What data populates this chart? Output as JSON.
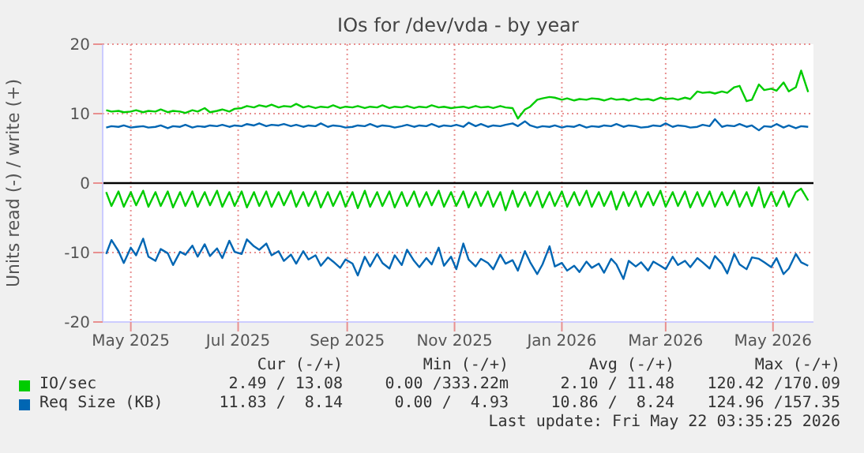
{
  "chart_data": {
    "type": "line",
    "title": "IOs for /dev/vda - by year",
    "ylabel": "Units read (-) / write (+)",
    "x": [
      "2025-04-17",
      "2025-04-20",
      "2025-04-24",
      "2025-04-27",
      "2025-05-01",
      "2025-05-04",
      "2025-05-08",
      "2025-05-11",
      "2025-05-15",
      "2025-05-18",
      "2025-05-22",
      "2025-05-25",
      "2025-05-29",
      "2025-06-01",
      "2025-06-05",
      "2025-06-08",
      "2025-06-12",
      "2025-06-15",
      "2025-06-19",
      "2025-06-22",
      "2025-06-26",
      "2025-06-29",
      "2025-07-03",
      "2025-07-06",
      "2025-07-10",
      "2025-07-13",
      "2025-07-17",
      "2025-07-20",
      "2025-07-24",
      "2025-07-27",
      "2025-07-31",
      "2025-08-03",
      "2025-08-07",
      "2025-08-10",
      "2025-08-14",
      "2025-08-17",
      "2025-08-21",
      "2025-08-24",
      "2025-08-28",
      "2025-08-31",
      "2025-09-04",
      "2025-09-07",
      "2025-09-11",
      "2025-09-14",
      "2025-09-18",
      "2025-09-21",
      "2025-09-25",
      "2025-09-28",
      "2025-10-02",
      "2025-10-05",
      "2025-10-09",
      "2025-10-12",
      "2025-10-16",
      "2025-10-19",
      "2025-10-23",
      "2025-10-26",
      "2025-10-30",
      "2025-11-02",
      "2025-11-06",
      "2025-11-09",
      "2025-11-13",
      "2025-11-16",
      "2025-11-20",
      "2025-11-23",
      "2025-11-27",
      "2025-11-30",
      "2025-12-04",
      "2025-12-07",
      "2025-12-11",
      "2025-12-14",
      "2025-12-18",
      "2025-12-21",
      "2025-12-25",
      "2025-12-28",
      "2026-01-01",
      "2026-01-04",
      "2026-01-08",
      "2026-01-11",
      "2026-01-15",
      "2026-01-18",
      "2026-01-22",
      "2026-01-25",
      "2026-01-29",
      "2026-02-01",
      "2026-02-05",
      "2026-02-08",
      "2026-02-12",
      "2026-02-15",
      "2026-02-19",
      "2026-02-22",
      "2026-02-26",
      "2026-03-01",
      "2026-03-05",
      "2026-03-08",
      "2026-03-12",
      "2026-03-15",
      "2026-03-19",
      "2026-03-22",
      "2026-03-26",
      "2026-03-29",
      "2026-04-02",
      "2026-04-05",
      "2026-04-09",
      "2026-04-12",
      "2026-04-16",
      "2026-04-19",
      "2026-04-23",
      "2026-04-26",
      "2026-04-30",
      "2026-05-03",
      "2026-05-07",
      "2026-05-10",
      "2026-05-14",
      "2026-05-17",
      "2026-05-21"
    ],
    "series": [
      {
        "name": "IO/sec",
        "color": "#00cc00",
        "values": [
          10.5,
          10.3,
          10.4,
          10.2,
          10.3,
          10.5,
          10.2,
          10.4,
          10.3,
          10.6,
          10.2,
          10.4,
          10.3,
          10.1,
          10.5,
          10.3,
          10.8,
          10.2,
          10.4,
          10.6,
          10.3,
          10.7,
          10.8,
          11.1,
          10.9,
          11.2,
          11.0,
          11.3,
          10.9,
          11.1,
          11.0,
          11.4,
          10.9,
          11.1,
          10.8,
          11.0,
          10.9,
          11.2,
          10.8,
          11.0,
          10.9,
          11.1,
          10.8,
          11.0,
          10.9,
          11.2,
          10.8,
          11.0,
          10.9,
          11.1,
          10.8,
          11.0,
          10.9,
          11.2,
          10.9,
          11.0,
          10.8,
          10.9,
          11.0,
          10.8,
          11.1,
          10.9,
          11.0,
          10.8,
          11.1,
          10.9,
          10.8,
          9.3,
          10.6,
          11.0,
          12.0,
          12.2,
          12.4,
          12.3,
          12.0,
          12.2,
          11.9,
          12.1,
          12.0,
          12.2,
          12.1,
          11.9,
          12.2,
          12.0,
          12.1,
          11.9,
          12.2,
          12.0,
          12.1,
          11.9,
          12.3,
          12.1,
          12.2,
          12.0,
          12.3,
          12.1,
          13.2,
          13.0,
          13.1,
          12.9,
          13.2,
          13.0,
          13.8,
          14.0,
          11.8,
          12.0,
          14.2,
          13.4,
          13.6,
          13.3,
          14.5,
          13.2,
          13.8,
          16.2,
          13.1
        ]
      },
      {
        "color": "#00cc00",
        "values": [
          -1.3,
          -3.3,
          -1.2,
          -3.4,
          -1.3,
          -3.2,
          -1.1,
          -3.4,
          -1.3,
          -3.3,
          -1.2,
          -3.5,
          -1.3,
          -3.3,
          -1.2,
          -3.4,
          -1.3,
          -3.2,
          -1.1,
          -3.4,
          -1.3,
          -3.3,
          -1.2,
          -3.5,
          -1.3,
          -3.3,
          -1.2,
          -3.4,
          -1.3,
          -3.2,
          -1.1,
          -3.4,
          -1.3,
          -3.3,
          -1.2,
          -3.5,
          -1.3,
          -3.3,
          -1.2,
          -3.4,
          -1.3,
          -3.6,
          -1.1,
          -3.4,
          -1.3,
          -3.3,
          -1.2,
          -3.5,
          -1.3,
          -3.3,
          -1.2,
          -3.4,
          -1.3,
          -3.2,
          -1.1,
          -3.4,
          -1.3,
          -3.3,
          -1.2,
          -3.5,
          -1.3,
          -3.3,
          -1.2,
          -3.4,
          -1.3,
          -3.9,
          -1.1,
          -3.4,
          -1.3,
          -3.3,
          -1.2,
          -3.5,
          -1.3,
          -3.3,
          -1.2,
          -3.4,
          -1.3,
          -3.2,
          -1.1,
          -3.4,
          -1.3,
          -3.3,
          -1.2,
          -3.8,
          -1.3,
          -3.3,
          -1.2,
          -3.4,
          -1.3,
          -3.2,
          -1.1,
          -3.4,
          -1.3,
          -3.3,
          -1.2,
          -3.5,
          -1.3,
          -3.3,
          -1.2,
          -3.4,
          -1.3,
          -3.2,
          -1.1,
          -3.4,
          -1.3,
          -3.3,
          -0.6,
          -3.5,
          -1.3,
          -3.3,
          -1.2,
          -3.4,
          -1.3,
          -0.8,
          -2.5
        ]
      },
      {
        "name": "Req Size (KB)",
        "color": "#0066b3",
        "values": [
          8.0,
          8.2,
          8.1,
          8.3,
          8.0,
          8.1,
          8.2,
          8.0,
          8.1,
          8.3,
          7.9,
          8.2,
          8.1,
          8.4,
          8.0,
          8.2,
          8.1,
          8.3,
          8.2,
          8.4,
          8.1,
          8.3,
          8.2,
          8.5,
          8.3,
          8.6,
          8.2,
          8.4,
          8.3,
          8.5,
          8.2,
          8.4,
          8.1,
          8.3,
          8.2,
          8.6,
          8.1,
          8.3,
          8.2,
          8.0,
          8.1,
          8.3,
          8.2,
          8.5,
          8.1,
          8.3,
          8.2,
          8.0,
          8.2,
          8.4,
          8.1,
          8.3,
          8.2,
          8.5,
          8.1,
          8.3,
          8.2,
          8.4,
          8.1,
          8.7,
          8.2,
          8.5,
          8.1,
          8.3,
          8.2,
          8.4,
          8.6,
          8.2,
          8.9,
          8.3,
          8.0,
          8.2,
          8.1,
          8.3,
          8.0,
          8.2,
          8.1,
          8.4,
          8.0,
          8.2,
          8.1,
          8.3,
          8.2,
          8.5,
          8.1,
          8.3,
          8.2,
          8.0,
          8.1,
          8.3,
          8.2,
          8.6,
          8.1,
          8.3,
          8.2,
          8.0,
          8.1,
          8.4,
          8.2,
          9.2,
          8.1,
          8.3,
          8.2,
          8.5,
          8.1,
          8.3,
          7.6,
          8.2,
          8.1,
          8.5,
          8.0,
          8.3,
          7.9,
          8.2,
          8.1
        ]
      },
      {
        "color": "#0066b3",
        "values": [
          -10.2,
          -8.2,
          -9.8,
          -11.5,
          -9.3,
          -10.4,
          -8.0,
          -10.6,
          -11.2,
          -9.5,
          -10.1,
          -11.8,
          -9.9,
          -10.3,
          -9.0,
          -10.6,
          -8.8,
          -10.5,
          -9.4,
          -10.8,
          -8.3,
          -9.9,
          -10.2,
          -8.1,
          -9.1,
          -9.6,
          -8.7,
          -10.4,
          -9.8,
          -11.2,
          -10.3,
          -11.6,
          -9.8,
          -11.0,
          -10.4,
          -11.9,
          -10.7,
          -11.3,
          -12.2,
          -11.0,
          -11.6,
          -13.3,
          -10.6,
          -12.0,
          -10.2,
          -11.5,
          -12.3,
          -10.4,
          -11.8,
          -9.6,
          -11.2,
          -12.1,
          -10.8,
          -11.7,
          -9.3,
          -11.9,
          -10.6,
          -12.4,
          -8.7,
          -11.0,
          -12.0,
          -10.9,
          -11.5,
          -12.4,
          -10.3,
          -11.6,
          -11.1,
          -12.6,
          -9.8,
          -11.4,
          -13.1,
          -11.7,
          -9.1,
          -12.0,
          -11.5,
          -12.6,
          -11.9,
          -12.8,
          -11.3,
          -12.2,
          -11.6,
          -12.9,
          -10.9,
          -11.7,
          -13.8,
          -11.2,
          -12.0,
          -11.4,
          -12.6,
          -11.3,
          -11.9,
          -12.4,
          -10.6,
          -11.8,
          -11.2,
          -12.1,
          -10.8,
          -11.4,
          -12.3,
          -10.5,
          -11.6,
          -13.0,
          -10.2,
          -11.7,
          -12.4,
          -10.7,
          -10.9,
          -11.4,
          -12.1,
          -10.8,
          -13.1,
          -12.3,
          -10.2,
          -11.4,
          -11.9
        ]
      }
    ],
    "xlim": [
      "2025-04-15",
      "2026-05-24"
    ],
    "xticks": [
      {
        "value": "2025-05-01",
        "label": "May 2025"
      },
      {
        "value": "2025-07-01",
        "label": "Jul 2025"
      },
      {
        "value": "2025-09-01",
        "label": "Sep 2025"
      },
      {
        "value": "2025-11-01",
        "label": "Nov 2025"
      },
      {
        "value": "2026-01-01",
        "label": "Jan 2026"
      },
      {
        "value": "2026-03-01",
        "label": "Mar 2026"
      },
      {
        "value": "2026-05-01",
        "label": "May 2026"
      }
    ],
    "ylim": [
      -20,
      20
    ],
    "yticks": [
      -20,
      -10,
      0,
      10,
      20
    ],
    "grid": true,
    "legend": "bottom",
    "marker": "none",
    "line_style": "solid",
    "ref_lines": [
      {
        "axis": "y",
        "value": 0,
        "color": "#000000"
      }
    ],
    "annotations": [
      "Cur (-/+)",
      "Min (-/+)",
      "Avg (-/+)",
      "Max (-/+)",
      "2.49 / 13.08",
      "0.00 /333.22m",
      "2.10 / 11.48",
      "120.42 /170.09",
      "11.83 /  8.14",
      "0.00 /  4.93",
      "10.86 /  8.24",
      "124.96 /157.35",
      "Last update: Fri May 22 03:35:25 2026"
    ]
  }
}
